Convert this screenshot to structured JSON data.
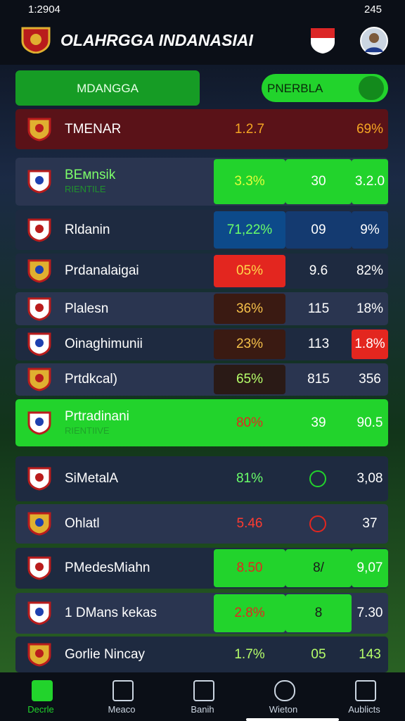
{
  "status_bar": {
    "time": "1:2904",
    "battery": "245"
  },
  "header": {
    "title": "OLAHRGGA INDANASIAI"
  },
  "tabs": [
    "MDANGGA",
    "PNERBLA"
  ],
  "rows": [
    {
      "name": "TMENAR",
      "cells": [
        "1.2.7",
        "",
        "69%"
      ]
    },
    {
      "name": "BEмnsik",
      "sub": "RIENTILE",
      "cells": [
        "3.3%",
        "30",
        "3.2.0"
      ]
    },
    {
      "name": "Rldanin",
      "cells": [
        "71,22%",
        "09",
        "9%"
      ]
    },
    {
      "name": "Prdanalaigai",
      "cells": [
        "05%",
        "9.6",
        "82%"
      ]
    },
    {
      "name": "Plalesn",
      "cells": [
        "36%",
        "115",
        "18%"
      ]
    },
    {
      "name": "Oinaghimunii",
      "cells": [
        "23%",
        "113",
        "1.8%"
      ]
    },
    {
      "name": "Prtdkcal)",
      "cells": [
        "65%",
        "815",
        "356"
      ]
    },
    {
      "name": "Prtradinani",
      "sub": "RIENTIIVE",
      "cells": [
        "80%",
        "39",
        "90.5"
      ]
    },
    {
      "name": "SiMetalA",
      "cells": [
        "81%",
        "",
        "3,08"
      ]
    },
    {
      "name": "Ohlatl",
      "cells": [
        "5.46",
        "",
        "37"
      ]
    },
    {
      "name": "PMedesMiahn",
      "cells": [
        "8.50",
        "8/",
        "9,07"
      ]
    },
    {
      "name": "1 DMans kekas",
      "cells": [
        "2.8%",
        "8",
        "7.30"
      ]
    },
    {
      "name": "Gorlie Nincay",
      "cells": [
        "1.7%",
        "05",
        "143"
      ]
    }
  ],
  "nav": [
    "Decrle",
    "Meaco",
    "Banih",
    "Wieton",
    "Aublicts"
  ]
}
